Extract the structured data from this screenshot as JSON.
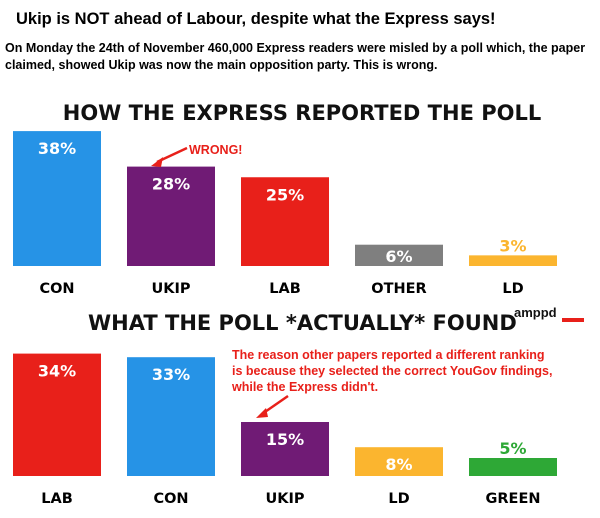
{
  "headline": "Ukip is NOT ahead of Labour, despite what the Express says!",
  "intro": "On Monday the 24th of November 460,000 Express readers were misled by a poll which, the paper claimed, showed Ukip was now the main opposition party. This is wrong.",
  "logo": "amppd",
  "colors": {
    "con": "#2693e6",
    "ukip": "#701b75",
    "lab": "#e8201a",
    "other": "#7f7f7f",
    "ld": "#fbb52f",
    "green": "#2ea836"
  },
  "chart_data": [
    {
      "type": "bar",
      "title": "HOW THE EXPRESS REPORTED THE POLL",
      "categories": [
        "CON",
        "UKIP",
        "LAB",
        "OTHER",
        "LD"
      ],
      "values": [
        38,
        28,
        25,
        6,
        3
      ],
      "value_labels": [
        "38%",
        "28%",
        "25%",
        "6%",
        "3%"
      ],
      "colors": [
        "#2693e6",
        "#701b75",
        "#e8201a",
        "#7f7f7f",
        "#fbb52f"
      ],
      "annotations": [
        {
          "text": "WRONG!",
          "target": "UKIP"
        }
      ]
    },
    {
      "type": "bar",
      "title": "WHAT THE POLL *ACTUALLY* FOUND",
      "categories": [
        "LAB",
        "CON",
        "UKIP",
        "LD",
        "GREEN"
      ],
      "values": [
        34,
        33,
        15,
        8,
        5
      ],
      "value_labels": [
        "34%",
        "33%",
        "15%",
        "8%",
        "5%"
      ],
      "colors": [
        "#e8201a",
        "#2693e6",
        "#701b75",
        "#fbb52f",
        "#2ea836"
      ],
      "annotations": [
        {
          "text": "The reason other papers reported a different ranking is because they selected the correct YouGov findings, while the Express didn't.",
          "target": "UKIP"
        }
      ]
    }
  ]
}
